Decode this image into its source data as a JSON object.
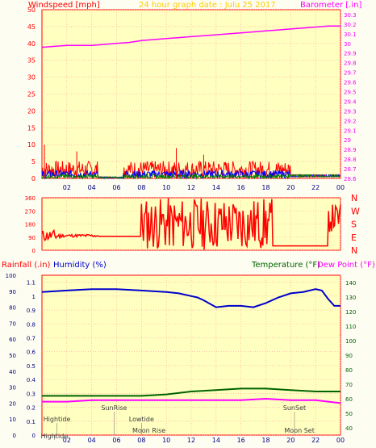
{
  "header": {
    "wind_title": "Windspeed [mph]",
    "date_title": "24 hour graph date : Julu 25 2017",
    "baro_title": "Barometer [.in]"
  },
  "lower_header": {
    "rain": "Rainfall (.in)",
    "humidity": "Humidity (%)",
    "temperature": "Temperature (°F)",
    "dewpoint": "Dew Point (°F)"
  },
  "colors": {
    "panel_bg": "#ffffc0",
    "page_bg": "#fdfdf2",
    "grid": "#ffa0a0",
    "frame": "#ff0000",
    "wind": "#ff0000",
    "gust_blue": "#0000ff",
    "gust_green": "#008000",
    "barometer": "#ff00ff",
    "humidity": "#0000cc",
    "temperature": "#006400",
    "dewpoint": "#ff00ff",
    "event_text": "#404040"
  },
  "chart_data": [
    {
      "type": "line",
      "panel": "wind-barometer",
      "x_ticks": [
        "02",
        "04",
        "06",
        "08",
        "10",
        "12",
        "14",
        "16",
        "18",
        "20",
        "22",
        "00"
      ],
      "y_left": {
        "label": "Windspeed [mph]",
        "range": [
          0,
          50
        ],
        "ticks": [
          "0",
          "5",
          "10",
          "15",
          "20",
          "25",
          "30",
          "35",
          "40",
          "45",
          "50"
        ]
      },
      "y_right": {
        "label": "Barometer [.in]",
        "range": [
          28.6,
          30.35
        ],
        "ticks": [
          "28.6",
          "28.7",
          "28.8",
          "28.9",
          "29",
          "29.1",
          "29.2",
          "29.3",
          "29.4",
          "29.5",
          "29.6",
          "29.7",
          "29.8",
          "29.9",
          "30",
          "30.1",
          "30.2",
          "30.3"
        ]
      },
      "series": [
        {
          "name": "Barometer",
          "axis": "right",
          "x": [
            0,
            1,
            2,
            3,
            4,
            5,
            6,
            7,
            8,
            9,
            10,
            11,
            12,
            13,
            14,
            15,
            16,
            17,
            18,
            19,
            20,
            21,
            22,
            23,
            24
          ],
          "y": [
            29.96,
            29.97,
            29.98,
            29.98,
            29.98,
            29.99,
            30.0,
            30.01,
            30.03,
            30.04,
            30.05,
            30.06,
            30.07,
            30.08,
            30.09,
            30.1,
            30.11,
            30.12,
            30.13,
            30.14,
            30.15,
            30.16,
            30.17,
            30.18,
            30.18
          ]
        }
      ],
      "wind": {
        "x_range": [
          0,
          24
        ],
        "calm_from": 20,
        "typical_max": 4,
        "peak_values": [
          10,
          8,
          9,
          7
        ]
      },
      "grid": true
    },
    {
      "type": "line",
      "panel": "wind-direction",
      "y_ticks": [
        "0",
        "90",
        "180",
        "270",
        "360"
      ],
      "compass": [
        "N",
        "W",
        "S",
        "E",
        "N"
      ],
      "series": [
        {
          "name": "Wind direction",
          "x": [
            0,
            0.5,
            1,
            2,
            3,
            4,
            4.5,
            5,
            6,
            7,
            8,
            8.5,
            9,
            10,
            11,
            12,
            13,
            14,
            15,
            16,
            17,
            18,
            18.5,
            19,
            20,
            21,
            22,
            23,
            23.3,
            23.6,
            24
          ],
          "y": [
            90,
            70,
            95,
            100,
            90,
            90,
            250,
            95,
            95,
            95,
            80,
            200,
            60,
            320,
            250,
            200,
            300,
            220,
            240,
            160,
            330,
            60,
            300,
            30,
            30,
            30,
            30,
            30,
            300,
            300,
            120
          ]
        }
      ],
      "grid": true
    },
    {
      "type": "line",
      "panel": "humidity-temperature",
      "x_ticks": [
        "02",
        "04",
        "06",
        "08",
        "10",
        "12",
        "14",
        "16",
        "18",
        "20",
        "22",
        "00"
      ],
      "y_left_outer": {
        "label": "Rainfall (.in)",
        "ticks": [
          "0",
          "10",
          "20",
          "30",
          "40",
          "50",
          "60",
          "70",
          "80",
          "90",
          "100"
        ]
      },
      "y_left": {
        "label": "Humidity (%)",
        "range": [
          0,
          1.15
        ],
        "ticks": [
          "0",
          "0.1",
          "0.2",
          "0.3",
          "0.4",
          "0.5",
          "0.6",
          "0.7",
          "0.8",
          "0.9",
          "1",
          "1.1"
        ]
      },
      "y_right": {
        "label": "Temperature (°F)",
        "range": [
          35,
          145
        ],
        "ticks": [
          "40",
          "50",
          "60",
          "70",
          "80",
          "90",
          "100",
          "110",
          "120",
          "130",
          "140"
        ]
      },
      "series": [
        {
          "name": "Humidity",
          "x": [
            0,
            2,
            4,
            6,
            8,
            10,
            11,
            12,
            12.5,
            13,
            14,
            15,
            16,
            17,
            18,
            19,
            20,
            21,
            22,
            22.5,
            23,
            23.5,
            24
          ],
          "y": [
            1.03,
            1.04,
            1.05,
            1.05,
            1.04,
            1.03,
            1.02,
            1.0,
            0.99,
            0.97,
            0.92,
            0.93,
            0.93,
            0.92,
            0.95,
            0.99,
            1.02,
            1.03,
            1.05,
            1.04,
            0.98,
            0.93,
            0.93
          ]
        },
        {
          "name": "Temperature",
          "x": [
            0,
            2,
            4,
            6,
            8,
            10,
            12,
            14,
            16,
            18,
            20,
            22,
            24
          ],
          "y": [
            62,
            62,
            62,
            62,
            62,
            63,
            65,
            66,
            67,
            67,
            66,
            65,
            65
          ]
        },
        {
          "name": "Dew Point",
          "x": [
            0,
            2,
            4,
            6,
            8,
            10,
            12,
            14,
            16,
            18,
            20,
            22,
            24
          ],
          "y": [
            58,
            58,
            59,
            59,
            59,
            59,
            59,
            59,
            59,
            60,
            59,
            59,
            57
          ]
        }
      ],
      "events": [
        {
          "label": "Hightide",
          "x": 1.2,
          "row": 1
        },
        {
          "label": "SunRise",
          "x": 5.8,
          "row": 0
        },
        {
          "label": "Lowtide",
          "x": 8.0,
          "row": 1
        },
        {
          "label": "Moon Rise",
          "x": 8.6,
          "row": 2
        },
        {
          "label": "SunSet",
          "x": 20.3,
          "row": 0
        },
        {
          "label": "Moon Set",
          "x": 20.7,
          "row": 2
        },
        {
          "label": "Hightide",
          "x": 1.0,
          "row": 3
        }
      ],
      "grid": true
    }
  ]
}
